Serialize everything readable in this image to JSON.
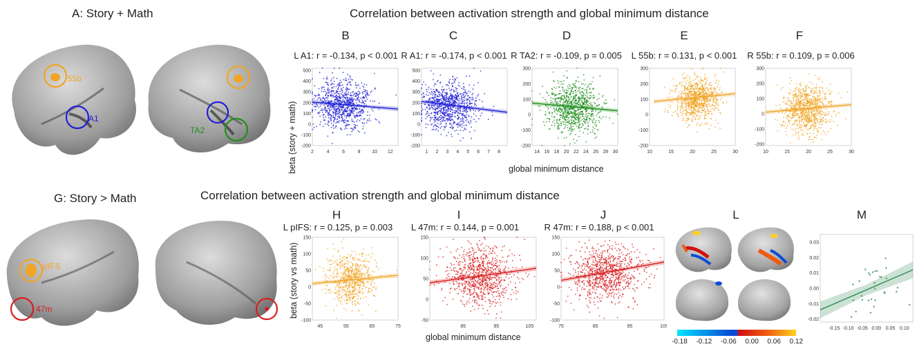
{
  "row1": {
    "brain_title": "A: Story + Math",
    "title": "Correlation between activation strength and global minimum distance",
    "xlabel": "global minimum distance",
    "ylabel": "beta (story + math)",
    "brain_labels": [
      "55b",
      "A1",
      "TA2"
    ]
  },
  "row2": {
    "brain_title": "G: Story > Math",
    "title": "Correlation between activation strength and global minimum distance",
    "xlabel": "global minimum distance",
    "ylabel": "beta (story vs math)",
    "brain_labels": [
      "pIFS",
      "47m"
    ]
  },
  "panels": [
    {
      "letter": "B",
      "subtitle": "L A1: r = -0.134, p < 0.001"
    },
    {
      "letter": "C",
      "subtitle": "R A1: r = -0.174, p < 0.001"
    },
    {
      "letter": "D",
      "subtitle": "R TA2: r = -0.109, p = 0.005"
    },
    {
      "letter": "E",
      "subtitle": "L 55b: r = 0.131, p < 0.001"
    },
    {
      "letter": "F",
      "subtitle": "R 55b: r = 0.109, p = 0.006"
    },
    {
      "letter": "H",
      "subtitle": "L pIFS: r = 0.125, p = 0.003"
    },
    {
      "letter": "I",
      "subtitle": "L 47m: r = 0.144, p = 0.001"
    },
    {
      "letter": "J",
      "subtitle": "R 47m: r = 0.188, p < 0.001"
    },
    {
      "letter": "L",
      "subtitle": ""
    },
    {
      "letter": "M",
      "subtitle": ""
    }
  ],
  "colorbar": {
    "ticks": [
      "-0.18",
      "-0.12",
      "-0.06",
      "0.00",
      "0.06",
      "0.12"
    ],
    "colors": [
      "#00e5ff",
      "#0a4bd6",
      "#d01010",
      "#ffd21a"
    ]
  },
  "colors": {
    "blue": "#1f1fd6",
    "green": "#1e8f1e",
    "orange": "#f0a526",
    "red": "#d81e1e"
  },
  "chart_data": [
    {
      "type": "scatter",
      "panel": "B",
      "color": "#1f1fd6",
      "xlim": [
        2,
        13
      ],
      "ylim": [
        -200,
        520
      ],
      "xticks": [
        2,
        4,
        6,
        8,
        10,
        12
      ],
      "yticks": [
        -200,
        -100,
        0,
        100,
        200,
        300,
        400,
        500
      ],
      "cx": 6,
      "sx": 1.8,
      "cy": 180,
      "sy": 110,
      "n": 900,
      "fit": [
        [
          2,
          205
        ],
        [
          13,
          140
        ]
      ]
    },
    {
      "type": "scatter",
      "panel": "C",
      "color": "#1f1fd6",
      "xlim": [
        0.5,
        8.8
      ],
      "ylim": [
        -200,
        520
      ],
      "xticks": [
        1,
        2,
        3,
        4,
        5,
        6,
        7,
        8
      ],
      "yticks": [
        -200,
        -100,
        0,
        100,
        200,
        300,
        400,
        500
      ],
      "cx": 3.2,
      "sx": 1.3,
      "cy": 170,
      "sy": 110,
      "n": 900,
      "fit": [
        [
          0.5,
          210
        ],
        [
          8.8,
          110
        ]
      ]
    },
    {
      "type": "scatter",
      "panel": "D",
      "color": "#1e8f1e",
      "xlim": [
        13,
        30.5
      ],
      "ylim": [
        -200,
        300
      ],
      "xticks": [
        14,
        16,
        18,
        20,
        22,
        24,
        26,
        28,
        30
      ],
      "yticks": [
        -200,
        -100,
        0,
        100,
        200,
        300
      ],
      "cx": 21.5,
      "sx": 2.8,
      "cy": 40,
      "sy": 80,
      "n": 900,
      "fit": [
        [
          13,
          75
        ],
        [
          30.5,
          25
        ]
      ]
    },
    {
      "type": "scatter",
      "panel": "E",
      "color": "#f0a526",
      "xlim": [
        10,
        30
      ],
      "ylim": [
        -200,
        300
      ],
      "xticks": [
        10,
        15,
        20,
        25,
        30
      ],
      "yticks": [
        -200,
        -100,
        0,
        100,
        200,
        300
      ],
      "cx": 21,
      "sx": 2.6,
      "cy": 100,
      "sy": 70,
      "n": 900,
      "fit": [
        [
          11,
          85
        ],
        [
          30,
          135
        ]
      ]
    },
    {
      "type": "scatter",
      "panel": "F",
      "color": "#f0a526",
      "xlim": [
        10,
        30
      ],
      "ylim": [
        -210,
        300
      ],
      "xticks": [
        10,
        15,
        20,
        25,
        30
      ],
      "yticks": [
        -200,
        -100,
        0,
        100,
        200,
        300
      ],
      "cx": 19.5,
      "sx": 2.7,
      "cy": 30,
      "sy": 80,
      "n": 900,
      "fit": [
        [
          10,
          10
        ],
        [
          30,
          60
        ]
      ]
    },
    {
      "type": "scatter",
      "panel": "H",
      "color": "#f0a526",
      "xlim": [
        42,
        75
      ],
      "ylim": [
        -100,
        150
      ],
      "xticks": [
        45,
        55,
        65,
        75
      ],
      "yticks": [
        -100,
        -50,
        0,
        50,
        100,
        150
      ],
      "cx": 57,
      "sx": 4.5,
      "cy": 20,
      "sy": 38,
      "n": 700,
      "fit": [
        [
          42,
          10
        ],
        [
          75,
          35
        ]
      ]
    },
    {
      "type": "scatter",
      "panel": "I",
      "color": "#d81e1e",
      "xlim": [
        75,
        107
      ],
      "ylim": [
        -50,
        150
      ],
      "xticks": [
        85,
        95,
        105
      ],
      "yticks": [
        -50,
        0,
        50,
        100,
        150
      ],
      "cx": 90,
      "sx": 5,
      "cy": 55,
      "sy": 35,
      "n": 900,
      "fit": [
        [
          75,
          40
        ],
        [
          107,
          75
        ]
      ]
    },
    {
      "type": "scatter",
      "panel": "J",
      "color": "#d81e1e",
      "xlim": [
        75,
        105
      ],
      "ylim": [
        -100,
        150
      ],
      "xticks": [
        75,
        85,
        95,
        105
      ],
      "yticks": [
        -100,
        -50,
        0,
        50,
        100,
        150
      ],
      "cx": 88,
      "sx": 5,
      "cy": 40,
      "sy": 40,
      "n": 900,
      "fit": [
        [
          75,
          20
        ],
        [
          105,
          75
        ]
      ]
    },
    {
      "type": "scatter",
      "panel": "M",
      "color": "#2e8b57",
      "xlim": [
        -0.2,
        0.13
      ],
      "ylim": [
        -0.022,
        0.035
      ],
      "xticks": [
        -0.15,
        -0.1,
        -0.05,
        0.0,
        0.05,
        0.1
      ],
      "xtick_labels": [
        "-0.15",
        "-0.10",
        "-0.05",
        "0.00",
        "0.05",
        "0.10"
      ],
      "yticks": [
        -0.02,
        -0.01,
        0.0,
        0.01,
        0.02,
        0.03
      ],
      "ytick_labels": [
        "-0.02",
        "-0.01",
        "0.00",
        "0.01",
        "0.02",
        "0.03"
      ],
      "cx": 0.0,
      "sx": 0.06,
      "cy": 0.0,
      "sy": 0.01,
      "n": 30,
      "fit": [
        [
          -0.2,
          -0.014
        ],
        [
          0.13,
          0.012
        ]
      ]
    }
  ]
}
